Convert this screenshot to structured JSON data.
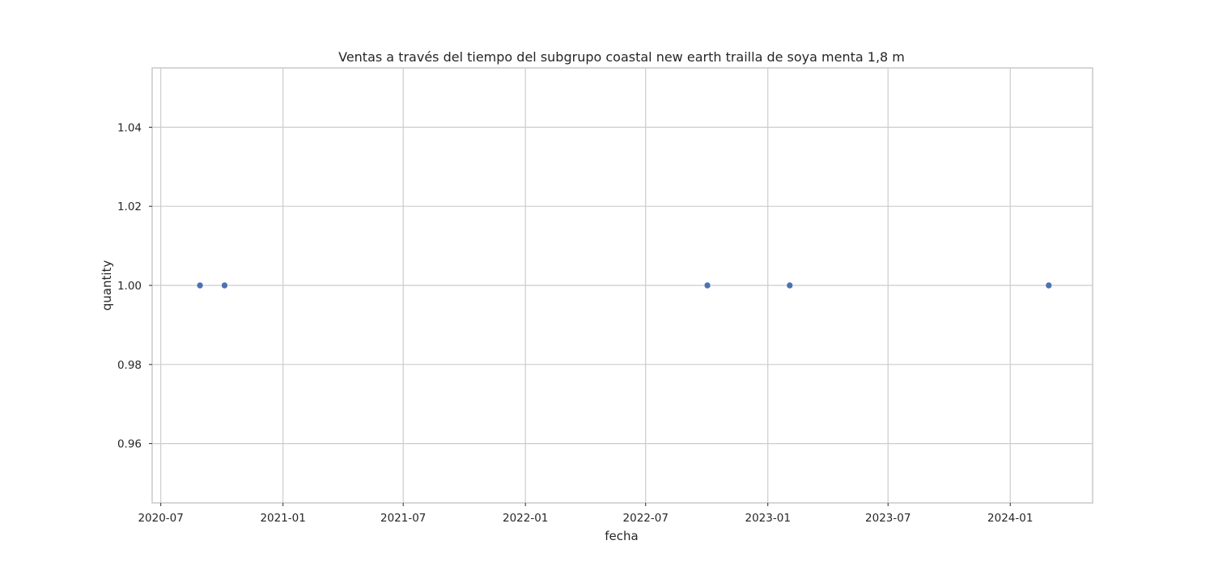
{
  "chart_data": {
    "type": "scatter",
    "title": "Ventas a través del tiempo del subgrupo coastal new earth trailla de soya menta 1,8 m",
    "xlabel": "fecha",
    "ylabel": "quantity",
    "x_ticks": [
      "2020-07",
      "2021-01",
      "2021-07",
      "2022-01",
      "2022-07",
      "2023-01",
      "2023-07",
      "2024-01"
    ],
    "y_ticks": [
      0.96,
      0.98,
      1.0,
      1.02,
      1.04
    ],
    "y_tick_labels": [
      "0.96",
      "0.98",
      "1.00",
      "1.02",
      "1.04"
    ],
    "xlim": [
      "2020-06-18",
      "2024-05-04"
    ],
    "ylim": [
      0.945,
      1.055
    ],
    "grid": true,
    "legend": "none",
    "point_color": "#4c72b0",
    "points": [
      {
        "x": "2020-08-29",
        "y": 1.0
      },
      {
        "x": "2020-10-05",
        "y": 1.0
      },
      {
        "x": "2022-10-02",
        "y": 1.0
      },
      {
        "x": "2023-02-03",
        "y": 1.0
      },
      {
        "x": "2024-02-28",
        "y": 1.0
      }
    ]
  }
}
